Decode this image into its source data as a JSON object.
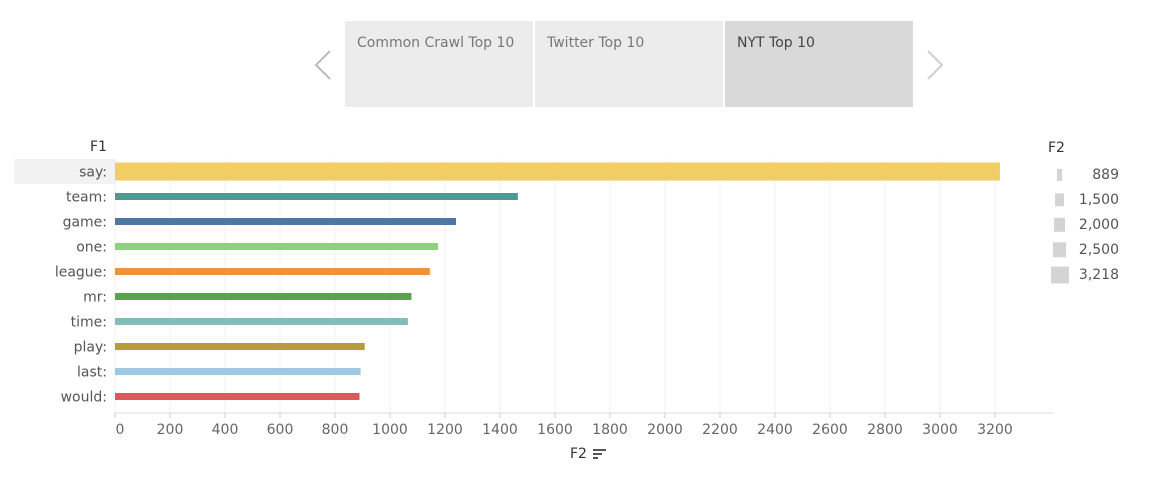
{
  "tabs": [
    {
      "label": "Common Crawl Top 10",
      "active": false
    },
    {
      "label": "Twitter Top 10",
      "active": false
    },
    {
      "label": "NYT Top 10",
      "active": true
    }
  ],
  "icons": {
    "prev": "chevron-left-icon",
    "next": "chevron-right-icon",
    "sort": "sort-descending-icon"
  },
  "chart_data": {
    "type": "bar",
    "orientation": "horizontal",
    "ylabel": "F1",
    "xlabel": "F2",
    "categories": [
      "say:",
      "team:",
      "game:",
      "one:",
      "league:",
      "mr:",
      "time:",
      "play:",
      "last:",
      "would:"
    ],
    "values": [
      3218,
      1465,
      1240,
      1175,
      1145,
      1078,
      1065,
      908,
      893,
      889
    ],
    "colors": [
      "#f2cd66",
      "#4e9a93",
      "#4e77a5",
      "#8dd07e",
      "#f0923a",
      "#59a24e",
      "#82bdb9",
      "#b79b3e",
      "#9dcae2",
      "#d95c5c"
    ],
    "xlim": [
      0,
      3400
    ],
    "xticks": [
      0,
      200,
      400,
      600,
      800,
      1000,
      1200,
      1400,
      1600,
      1800,
      2000,
      2200,
      2400,
      2600,
      2800,
      3000,
      3200
    ],
    "grid": true,
    "highlighted_category": "say:",
    "legend": {
      "title": "F2",
      "placement": "right",
      "entries": [
        {
          "label": "889",
          "value": 889
        },
        {
          "label": "1,500",
          "value": 1500
        },
        {
          "label": "2,000",
          "value": 2000
        },
        {
          "label": "2,500",
          "value": 2500
        },
        {
          "label": "3,218",
          "value": 3218
        }
      ]
    }
  }
}
